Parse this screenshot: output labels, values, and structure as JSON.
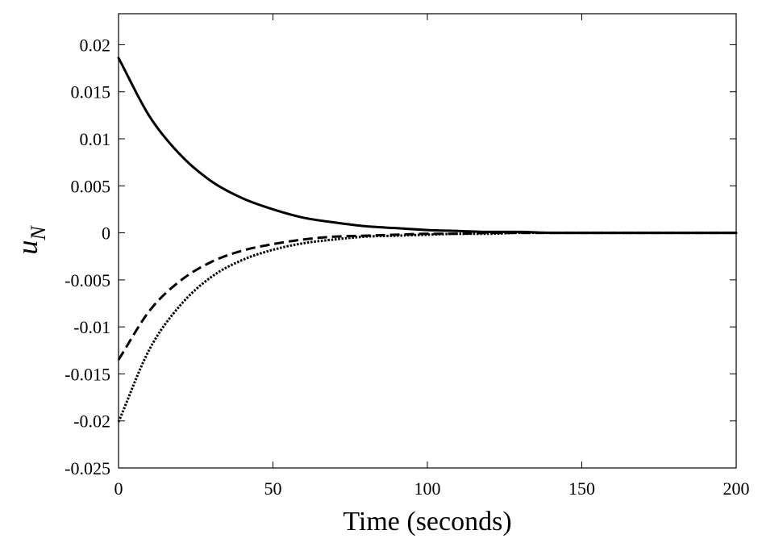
{
  "chart_data": {
    "type": "line",
    "title": "",
    "xlabel": "Time (seconds)",
    "ylabel_main": "u",
    "ylabel_sub": "N",
    "xlim": [
      0,
      200
    ],
    "ylim": [
      -0.025,
      0.025
    ],
    "xticks": [
      0,
      50,
      100,
      150,
      200
    ],
    "xtick_labels": [
      "0",
      "50",
      "100",
      "150",
      "200"
    ],
    "yticks": [
      0.02,
      0.015,
      0.01,
      0.005,
      0,
      -0.005,
      -0.01,
      -0.015,
      -0.02,
      -0.025
    ],
    "ytick_labels": [
      "0.02",
      "0.015",
      "0.01",
      "0.005",
      "0",
      "-0.005",
      "-0.01",
      "-0.015",
      "-0.02",
      "-0.025"
    ],
    "grid": false,
    "legend": "none",
    "x": [
      0,
      10,
      20,
      30,
      40,
      50,
      60,
      70,
      80,
      90,
      100,
      110,
      120,
      130,
      140,
      150,
      160,
      170,
      180,
      190,
      200
    ],
    "series": [
      {
        "style": "solid",
        "color": "#000000",
        "values": [
          0.0186,
          0.0124,
          0.0083,
          0.0055,
          0.0037,
          0.0025,
          0.0016,
          0.0011,
          0.0007,
          0.0005,
          0.0003,
          0.0002,
          0.0001,
          0.0001,
          0.0,
          0.0,
          0.0,
          0.0,
          0.0,
          0.0,
          0.0
        ]
      },
      {
        "style": "dashed",
        "color": "#000000",
        "values": [
          -0.0135,
          -0.0083,
          -0.0051,
          -0.0031,
          -0.0019,
          -0.0012,
          -0.0007,
          -0.0004,
          -0.0003,
          -0.0002,
          -0.0001,
          -0.0001,
          0.0,
          0.0,
          0.0,
          0.0,
          0.0,
          0.0,
          0.0,
          0.0,
          0.0
        ]
      },
      {
        "style": "dotted",
        "color": "#000000",
        "values": [
          -0.0201,
          -0.0124,
          -0.0077,
          -0.0047,
          -0.0029,
          -0.0018,
          -0.0011,
          -0.0007,
          -0.0004,
          -0.0003,
          -0.0002,
          -0.0001,
          -0.0001,
          0.0,
          0.0,
          0.0,
          0.0,
          0.0,
          0.0,
          0.0,
          0.0
        ]
      }
    ]
  }
}
